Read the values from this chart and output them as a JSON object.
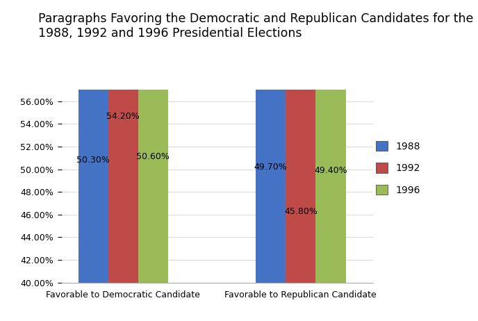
{
  "title": "Paragraphs Favoring the Democratic and Republican Candidates for the\n1988, 1992 and 1996 Presidential Elections",
  "categories": [
    "Favorable to Democratic Candidate",
    "Favorable to Republican Candidate"
  ],
  "series": {
    "1988": [
      0.503,
      0.497
    ],
    "1992": [
      0.542,
      0.458
    ],
    "1996": [
      0.506,
      0.494
    ]
  },
  "labels": {
    "1988": [
      "50.30%",
      "49.70%"
    ],
    "1992": [
      "54.20%",
      "45.80%"
    ],
    "1996": [
      "50.60%",
      "49.40%"
    ]
  },
  "colors": {
    "1988": "#4472C4",
    "1992": "#BE4B48",
    "1996": "#9BBB59"
  },
  "ylim": [
    0.4,
    0.57
  ],
  "yticks": [
    0.4,
    0.42,
    0.44,
    0.46,
    0.48,
    0.5,
    0.52,
    0.54,
    0.56
  ],
  "ytick_labels": [
    "40.00%",
    "42.00%",
    "44.00%",
    "46.00%",
    "48.00%",
    "50.00%",
    "52.00%",
    "54.00%",
    "56.00%"
  ],
  "legend_labels": [
    "1988",
    "1992",
    "1996"
  ],
  "bar_width": 0.27,
  "background_color": "#FFFFFF",
  "title_fontsize": 12.5,
  "tick_fontsize": 9,
  "label_fontsize": 9,
  "legend_fontsize": 10
}
